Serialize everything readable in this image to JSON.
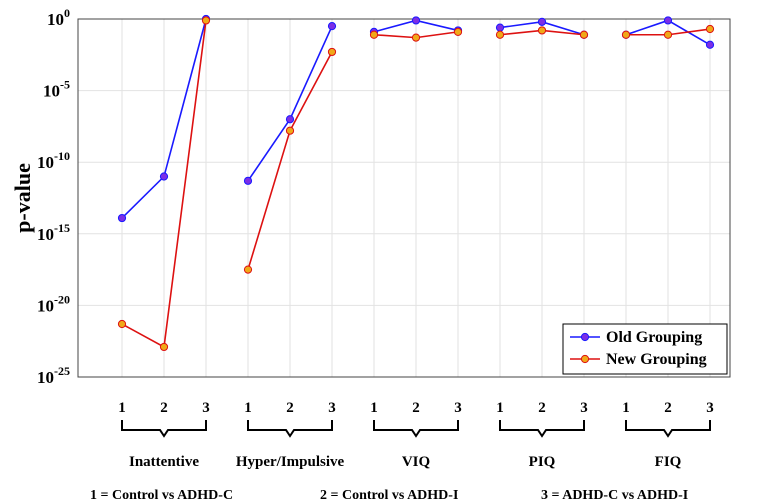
{
  "chart_data": {
    "type": "line",
    "yscale": "log",
    "ylabel": "p-value",
    "ylim_exponent": [
      -25,
      0
    ],
    "ytick_exponents": [
      0,
      -5,
      -10,
      -15,
      -20,
      -25
    ],
    "ytick_labels": [
      {
        "base": "10",
        "exp": "0"
      },
      {
        "base": "10",
        "exp": "-5"
      },
      {
        "base": "10",
        "exp": "-10"
      },
      {
        "base": "10",
        "exp": "-15"
      },
      {
        "base": "10",
        "exp": "-20"
      },
      {
        "base": "10",
        "exp": "-25"
      }
    ],
    "grid": true,
    "legend_position": "bottom-right",
    "groups": [
      {
        "label": "Inattentive",
        "ticks": [
          "1",
          "2",
          "3"
        ]
      },
      {
        "label": "Hyper/Impulsive",
        "ticks": [
          "1",
          "2",
          "3"
        ]
      },
      {
        "label": "VIQ",
        "ticks": [
          "1",
          "2",
          "3"
        ]
      },
      {
        "label": "PIQ",
        "ticks": [
          "1",
          "2",
          "3"
        ]
      },
      {
        "label": "FIQ",
        "ticks": [
          "1",
          "2",
          "3"
        ]
      }
    ],
    "series": [
      {
        "name": "Old Grouping",
        "color": "#1a1aff",
        "marker_color": "#7b2ee6",
        "log10_values": [
          [
            -13.9,
            -11.0,
            0.0
          ],
          [
            -11.3,
            -7.0,
            -0.5
          ],
          [
            -0.9,
            -0.1,
            -0.8
          ],
          [
            -0.6,
            -0.2,
            -1.1
          ],
          [
            -1.1,
            -0.1,
            -1.8
          ]
        ]
      },
      {
        "name": "New Grouping",
        "color": "#dd1111",
        "marker_color": "#f0a818",
        "log10_values": [
          [
            -21.3,
            -22.9,
            -0.1
          ],
          [
            -17.5,
            -7.8,
            -2.3
          ],
          [
            -1.1,
            -1.3,
            -0.9
          ],
          [
            -1.1,
            -0.8,
            -1.1
          ],
          [
            -1.1,
            -1.1,
            -0.7
          ]
        ]
      }
    ],
    "footnotes": [
      "1 = Control vs ADHD-C",
      "2 = Control vs ADHD-I",
      "3 = ADHD-C vs ADHD-I"
    ]
  }
}
